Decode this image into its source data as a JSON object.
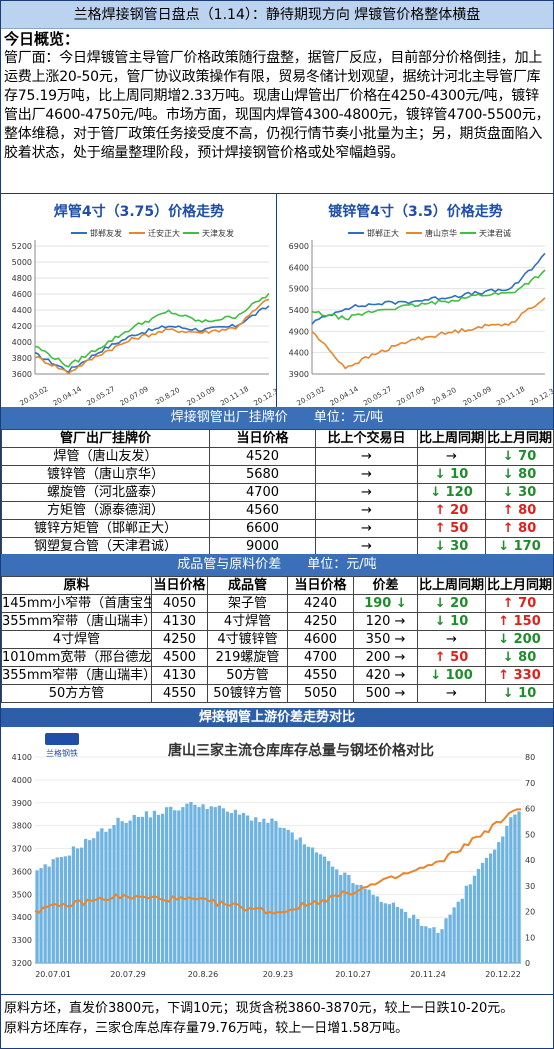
{
  "header": {
    "title": "兰格焊接钢管日盘点（1.14）：静待期现方向 焊镀管价格整体横盘"
  },
  "summary": {
    "heading": "今日概览：",
    "text": "管厂面：今日焊镀管主导管厂价格政策随行盘整，据管厂反应，目前部分价格倒挂，加上运费上涨20-50元，管厂协议政策操作有限，贸易冬储计划观望，据统计河北主导管厂库存75.19万吨，比上周同期增2.33万吨。现唐山焊管出厂价格在4250-4300元/吨，镀锌管出厂4600-4750元/吨。市场方面，现国内焊管4300-4800元，镀锌管4700-5500元，整体维稳，对于管厂政策任务接受度不高，仍视行情节奏小批量为主；另，期货盘面陷入胶着状态，处于缩量整理阶段，预计焊接钢管价格或处窄幅趋弱。"
  },
  "chart_left": {
    "title": "焊管4寸（3.75）价格走势",
    "legend": [
      "邯郸友发",
      "迁安正大",
      "天津友发"
    ],
    "colors": [
      "#2f6fc1",
      "#e9852b",
      "#3fbf3f"
    ],
    "yticks": [
      "3600",
      "3800",
      "4000",
      "4200",
      "4400",
      "4600",
      "4800",
      "5000",
      "5200"
    ],
    "xticks": [
      "20.03.02",
      "20.04.14",
      "20.05.27",
      "20.07.09",
      "20.8.20",
      "20.10.09",
      "20.11.18",
      "20.12.30"
    ]
  },
  "chart_right": {
    "title": "镀锌管4寸（3.5）价格走势",
    "legend": [
      "邯郸正大",
      "唐山京华",
      "天津君诚"
    ],
    "colors": [
      "#2f6fc1",
      "#e9852b",
      "#3fbf3f"
    ],
    "yticks": [
      "3900",
      "4400",
      "4900",
      "5400",
      "5900",
      "6400",
      "6900"
    ],
    "xticks": [
      "20.03.02",
      "20.04.14",
      "20.05.27",
      "20.07.09",
      "20.8.20",
      "20.10.09",
      "20.11.18",
      "20.12.30"
    ]
  },
  "table1": {
    "band": "焊接钢管出厂挂牌价　　单位：元/吨",
    "headers": [
      "管厂出厂挂牌价",
      "当日价格",
      "比上个交易日",
      "比上周同期",
      "比上月同期"
    ],
    "rows": [
      {
        "name": "焊管（唐山友发）",
        "price": "4520",
        "d1": "→",
        "w": "→",
        "w_dir": "flat",
        "m": "↓ 70",
        "m_dir": "down"
      },
      {
        "name": "镀锌管（唐山京华）",
        "price": "5680",
        "d1": "→",
        "w": "↓ 10",
        "w_dir": "down",
        "m": "↓ 80",
        "m_dir": "down"
      },
      {
        "name": "螺旋管（河北盛泰）",
        "price": "4700",
        "d1": "→",
        "w": "↓ 120",
        "w_dir": "down",
        "m": "↓ 30",
        "m_dir": "down"
      },
      {
        "name": "方矩管（源泰德润）",
        "price": "4560",
        "d1": "→",
        "w": "↑ 20",
        "w_dir": "up",
        "m": "↑ 80",
        "m_dir": "up"
      },
      {
        "name": "镀锌方矩管（邯郸正大）",
        "price": "6600",
        "d1": "→",
        "w": "↑ 50",
        "w_dir": "up",
        "m": "↑ 80",
        "m_dir": "up"
      },
      {
        "name": "钢塑复合管（天津君诚）",
        "price": "9000",
        "d1": "→",
        "w": "↓ 30",
        "w_dir": "down",
        "m": "↓ 170",
        "m_dir": "down"
      }
    ]
  },
  "table2": {
    "band": "成品管与原料价差　　单位：元/吨",
    "headers": [
      "原料",
      "当日价格",
      "成品管",
      "当日价格",
      "价差",
      "比上周同期",
      "比上月同期"
    ],
    "rows": [
      {
        "raw": "145mm小窄带（首唐宝生）",
        "rp": "4050",
        "pipe": "架子管",
        "pp": "4240",
        "diff": "190 ↓",
        "diff_dir": "down",
        "w": "↓ 20",
        "w_dir": "down",
        "m": "↑ 70",
        "m_dir": "up"
      },
      {
        "raw": "355mm窄带（唐山瑞丰）",
        "rp": "4130",
        "pipe": "4寸焊管",
        "pp": "4250",
        "diff": "120 →",
        "diff_dir": "flat",
        "w": "↓ 10",
        "w_dir": "down",
        "m": "↑ 150",
        "m_dir": "up"
      },
      {
        "raw": "4寸焊管",
        "rp": "4250",
        "pipe": "4寸镀锌管",
        "pp": "4600",
        "diff": "350 →",
        "diff_dir": "flat",
        "w": "→",
        "w_dir": "flat",
        "m": "↓ 200",
        "m_dir": "down"
      },
      {
        "raw": "1010mm宽带（邢台德龙）",
        "rp": "4500",
        "pipe": "219螺旋管",
        "pp": "4700",
        "diff": "200 →",
        "diff_dir": "flat",
        "w": "↑ 50",
        "w_dir": "up",
        "m": "↓ 80",
        "m_dir": "down"
      },
      {
        "raw": "355mm窄带（唐山瑞丰）",
        "rp": "4130",
        "pipe": "50方管",
        "pp": "4550",
        "diff": "420 →",
        "diff_dir": "flat",
        "w": "↓ 100",
        "w_dir": "down",
        "m": "↑ 330",
        "m_dir": "up"
      },
      {
        "raw": "50方方管",
        "rp": "4550",
        "pipe": "50镀锌方管",
        "pp": "5050",
        "diff": "500 →",
        "diff_dir": "flat",
        "w": "→",
        "w_dir": "flat",
        "m": "↓ 10",
        "m_dir": "down"
      }
    ]
  },
  "section3": {
    "band": "焊接钢管上游价差走势对比"
  },
  "lower_chart": {
    "logo_text": "兰格钢铁",
    "title": "唐山三家主流仓库库存总量与钢坯价格对比",
    "left_ticks": [
      "3200",
      "3300",
      "3400",
      "3500",
      "3600",
      "3700",
      "3800",
      "3900",
      "4000",
      "4100"
    ],
    "right_ticks": [
      "0",
      "10",
      "20",
      "30",
      "40",
      "50",
      "60",
      "70",
      "80"
    ],
    "xticks": [
      "20.07.01",
      "20.07.29",
      "20.8.26",
      "20.9.23",
      "20.10.27",
      "20.11.24",
      "20.12.22"
    ],
    "bar_color": "#6fb3e0",
    "line_color": "#e9852b"
  },
  "footer": {
    "line1": "原料方坯，直发价3800元，下调10元；现货含税3860-3870元，较上一日跌10-20元。",
    "line2": "原料方坯库存，三家仓库总库存量79.76万吨，较上一日增1.58万吨。"
  },
  "chart_data": [
    {
      "type": "line",
      "title": "焊管4寸（3.75）价格走势",
      "ylim": [
        3600,
        5200
      ],
      "x": [
        "20.03.02",
        "20.04.14",
        "20.05.27",
        "20.07.09",
        "20.8.20",
        "20.10.09",
        "20.11.18",
        "20.12.30"
      ],
      "series": [
        {
          "name": "邯郸友发",
          "values": [
            3850,
            3640,
            3900,
            4100,
            4200,
            4150,
            4200,
            4450
          ]
        },
        {
          "name": "迁安正大",
          "values": [
            3820,
            3620,
            3860,
            4050,
            4150,
            4120,
            4180,
            4550
          ]
        },
        {
          "name": "天津友发",
          "values": [
            3950,
            3700,
            3950,
            4200,
            4380,
            4250,
            4320,
            4600
          ]
        }
      ]
    },
    {
      "type": "line",
      "title": "镀锌管4寸（3.5）价格走势",
      "ylim": [
        3900,
        6900
      ],
      "x": [
        "20.03.02",
        "20.04.14",
        "20.05.27",
        "20.07.09",
        "20.8.20",
        "20.10.09",
        "20.11.18",
        "20.12.30"
      ],
      "series": [
        {
          "name": "邯郸正大",
          "values": [
            5100,
            5450,
            5550,
            5600,
            5700,
            5800,
            5900,
            6700
          ]
        },
        {
          "name": "唐山京华",
          "values": [
            4900,
            4050,
            4400,
            4700,
            4850,
            5000,
            5100,
            5700
          ]
        },
        {
          "name": "天津君诚",
          "values": [
            5350,
            5200,
            5400,
            5500,
            5600,
            5750,
            5800,
            6300
          ]
        }
      ]
    },
    {
      "type": "bar",
      "title": "唐山三家主流仓库库存总量与钢坯价格对比",
      "categories": [
        "20.07.01",
        "20.07.29",
        "20.8.26",
        "20.9.23",
        "20.10.27",
        "20.11.24",
        "20.12.22"
      ],
      "series": [
        {
          "values": [
            35,
            55,
            62,
            54,
            30,
            12,
            60
          ]
        },
        {
          "values": [
            3430,
            3490,
            3475,
            3420,
            3520,
            3640,
            3880
          ]
        }
      ],
      "ylim": [
        3200,
        4100
      ],
      "y2lim": [
        0,
        80
      ]
    }
  ]
}
